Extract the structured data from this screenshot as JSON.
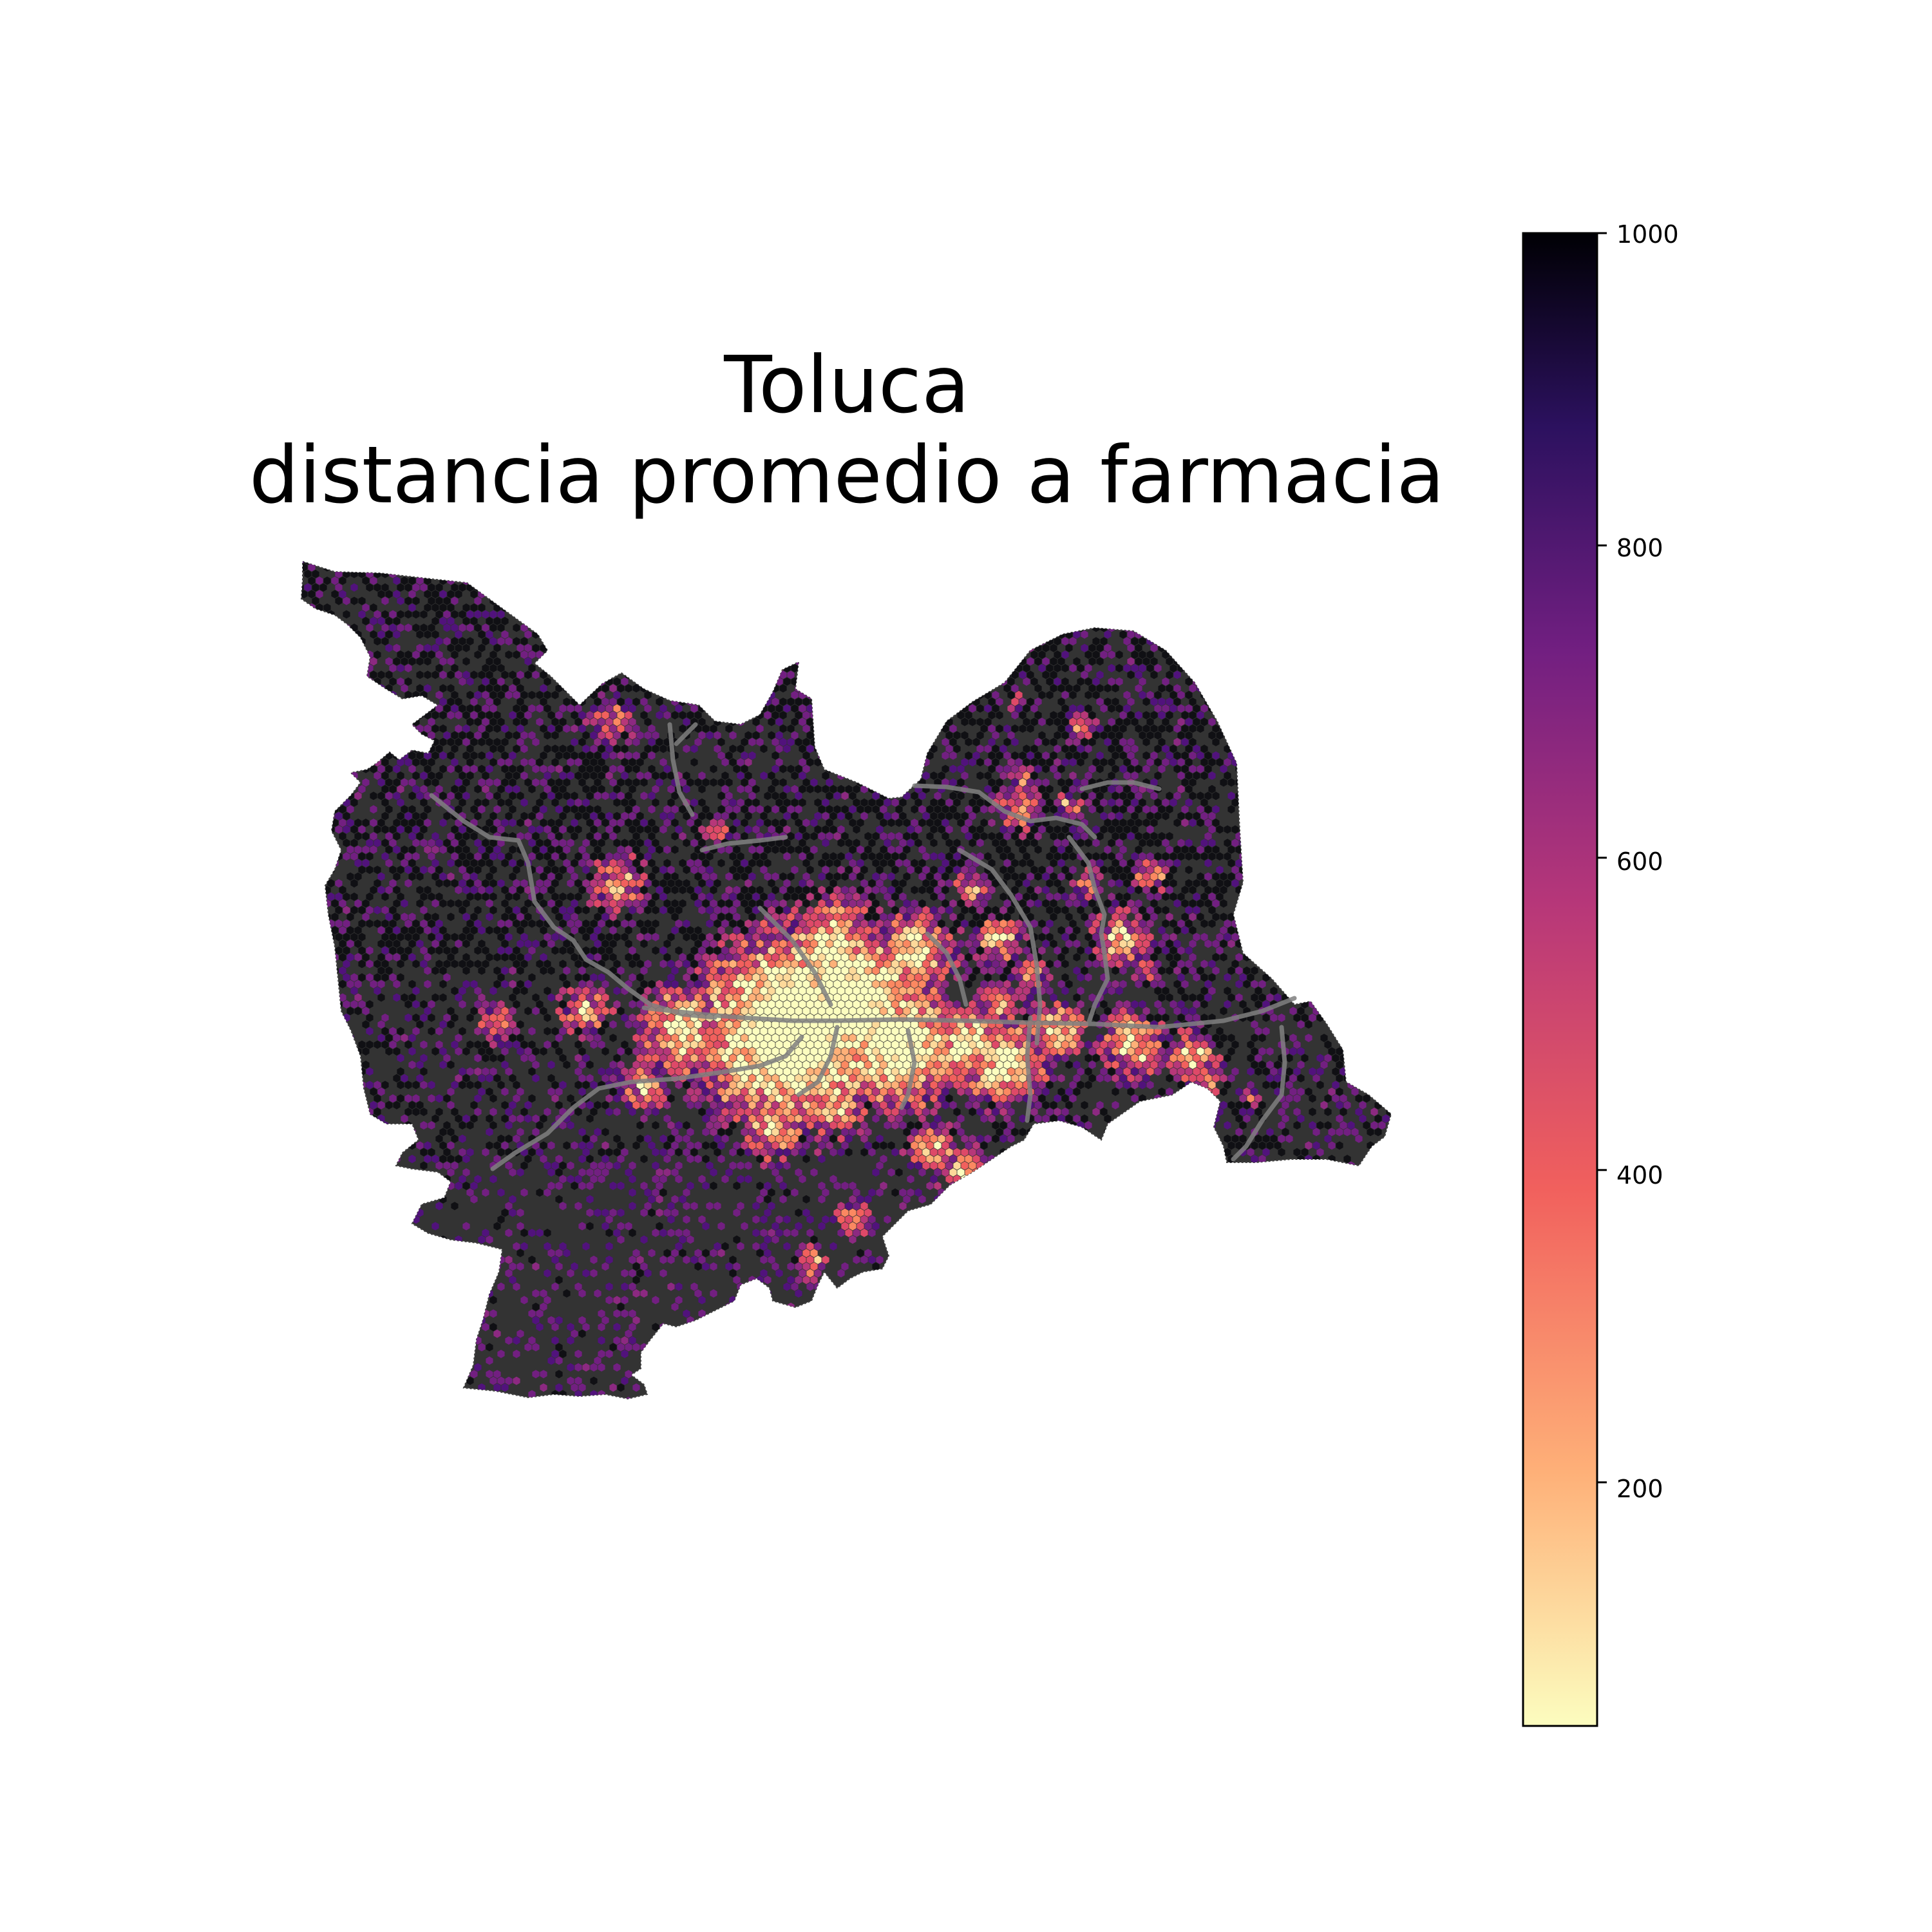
{
  "title": {
    "line1": "Toluca",
    "line2": "distancia promedio a farmacia"
  },
  "colorbar": {
    "min": 44,
    "max": 1000,
    "ticks": [
      "200",
      "400",
      "600",
      "800",
      "1000"
    ],
    "colormap": "magma_r",
    "stops": [
      "#fcfdbf",
      "#feb078",
      "#f1605d",
      "#b73779",
      "#721f81",
      "#2c115f",
      "#000004"
    ]
  },
  "map": {
    "background_color": "#333333",
    "road_color": "#808080",
    "region": "Toluca"
  }
}
